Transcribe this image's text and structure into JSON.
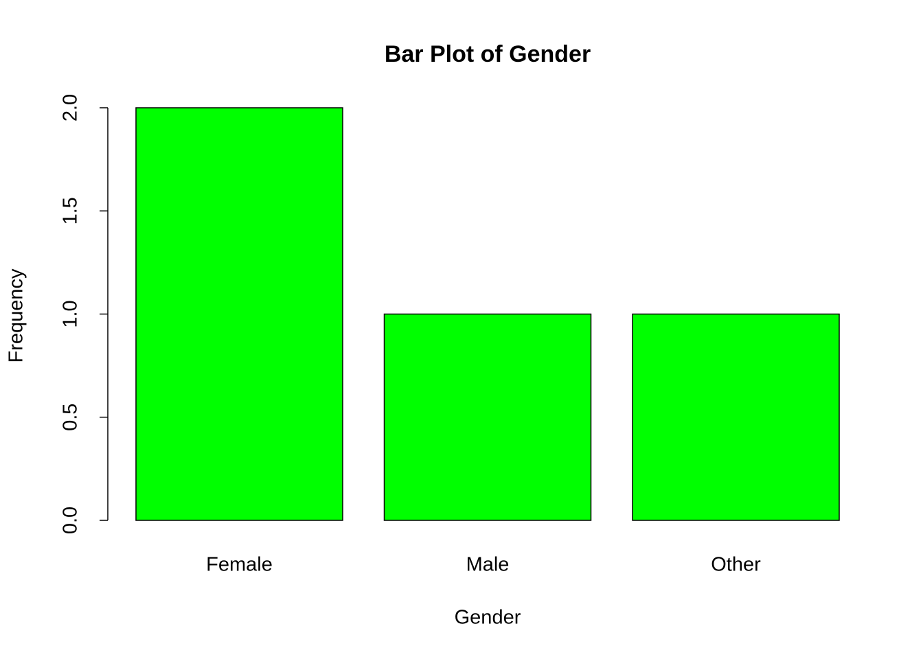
{
  "chart_data": {
    "type": "bar",
    "title": "Bar Plot of Gender",
    "x_label": "Gender",
    "y_label": "Frequency",
    "categories": [
      "Female",
      "Male",
      "Other"
    ],
    "values": [
      2,
      1,
      1
    ],
    "color": "#00ff00",
    "ylim": [
      0,
      2
    ],
    "yticks": [
      {
        "value": 0,
        "label": "0.0"
      },
      {
        "value": 0.5,
        "label": "0.5"
      },
      {
        "value": 1,
        "label": "1.0"
      },
      {
        "value": 1.5,
        "label": "1.5"
      },
      {
        "value": 2,
        "label": "2.0"
      }
    ],
    "grid": false
  }
}
